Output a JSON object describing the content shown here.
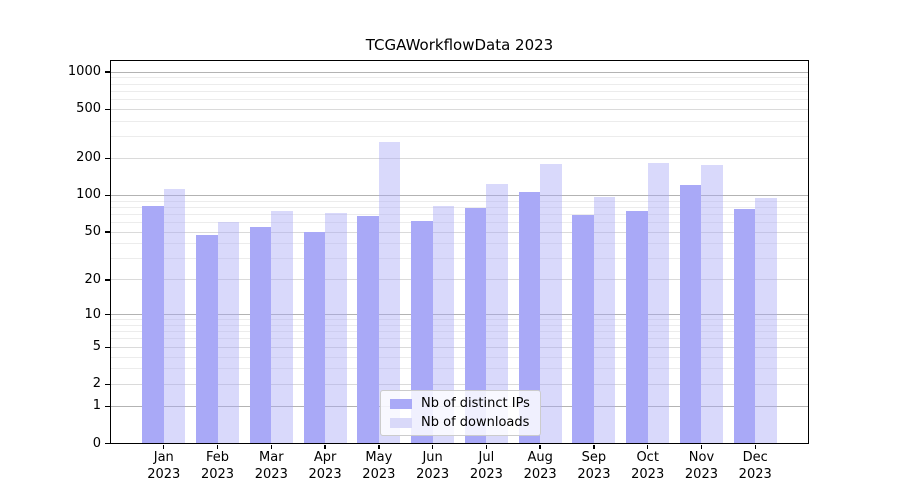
{
  "chart_data": {
    "type": "bar",
    "title": "TCGAWorkflowData 2023",
    "categories": [
      {
        "month": "Jan",
        "year": "2023"
      },
      {
        "month": "Feb",
        "year": "2023"
      },
      {
        "month": "Mar",
        "year": "2023"
      },
      {
        "month": "Apr",
        "year": "2023"
      },
      {
        "month": "May",
        "year": "2023"
      },
      {
        "month": "Jun",
        "year": "2023"
      },
      {
        "month": "Jul",
        "year": "2023"
      },
      {
        "month": "Aug",
        "year": "2023"
      },
      {
        "month": "Sep",
        "year": "2023"
      },
      {
        "month": "Oct",
        "year": "2023"
      },
      {
        "month": "Nov",
        "year": "2023"
      },
      {
        "month": "Dec",
        "year": "2023"
      }
    ],
    "series": [
      {
        "name": "Nb of distinct IPs",
        "color": "#a9a9f7",
        "fill": "#a9a9f7",
        "values": [
          82,
          47,
          55,
          50,
          68,
          62,
          79,
          107,
          69,
          75,
          121,
          77
        ]
      },
      {
        "name": "Nb of downloads",
        "color": "#d9d9f9",
        "fill": "rgba(169,169,247,0.44)",
        "values": [
          112,
          61,
          74,
          72,
          274,
          82,
          125,
          180,
          97,
          185,
          178,
          95
        ]
      }
    ],
    "yscale": "log1p",
    "ylim": [
      0,
      1255
    ],
    "yticks": [
      0,
      1,
      2,
      5,
      10,
      20,
      50,
      100,
      200,
      500,
      1000
    ],
    "ytick_labels": [
      "0",
      "1",
      "2",
      "5",
      "10",
      "20",
      "50",
      "100",
      "200",
      "500",
      "1000"
    ],
    "grid": {
      "show": true,
      "major": [
        1,
        10,
        100,
        1000
      ],
      "mid": [
        2,
        5,
        20,
        50,
        200,
        500
      ],
      "minor": [
        3,
        4,
        6,
        7,
        8,
        9,
        30,
        40,
        60,
        70,
        80,
        90,
        300,
        400,
        600,
        700,
        800,
        900
      ]
    },
    "legend": {
      "position": "lower center"
    }
  }
}
